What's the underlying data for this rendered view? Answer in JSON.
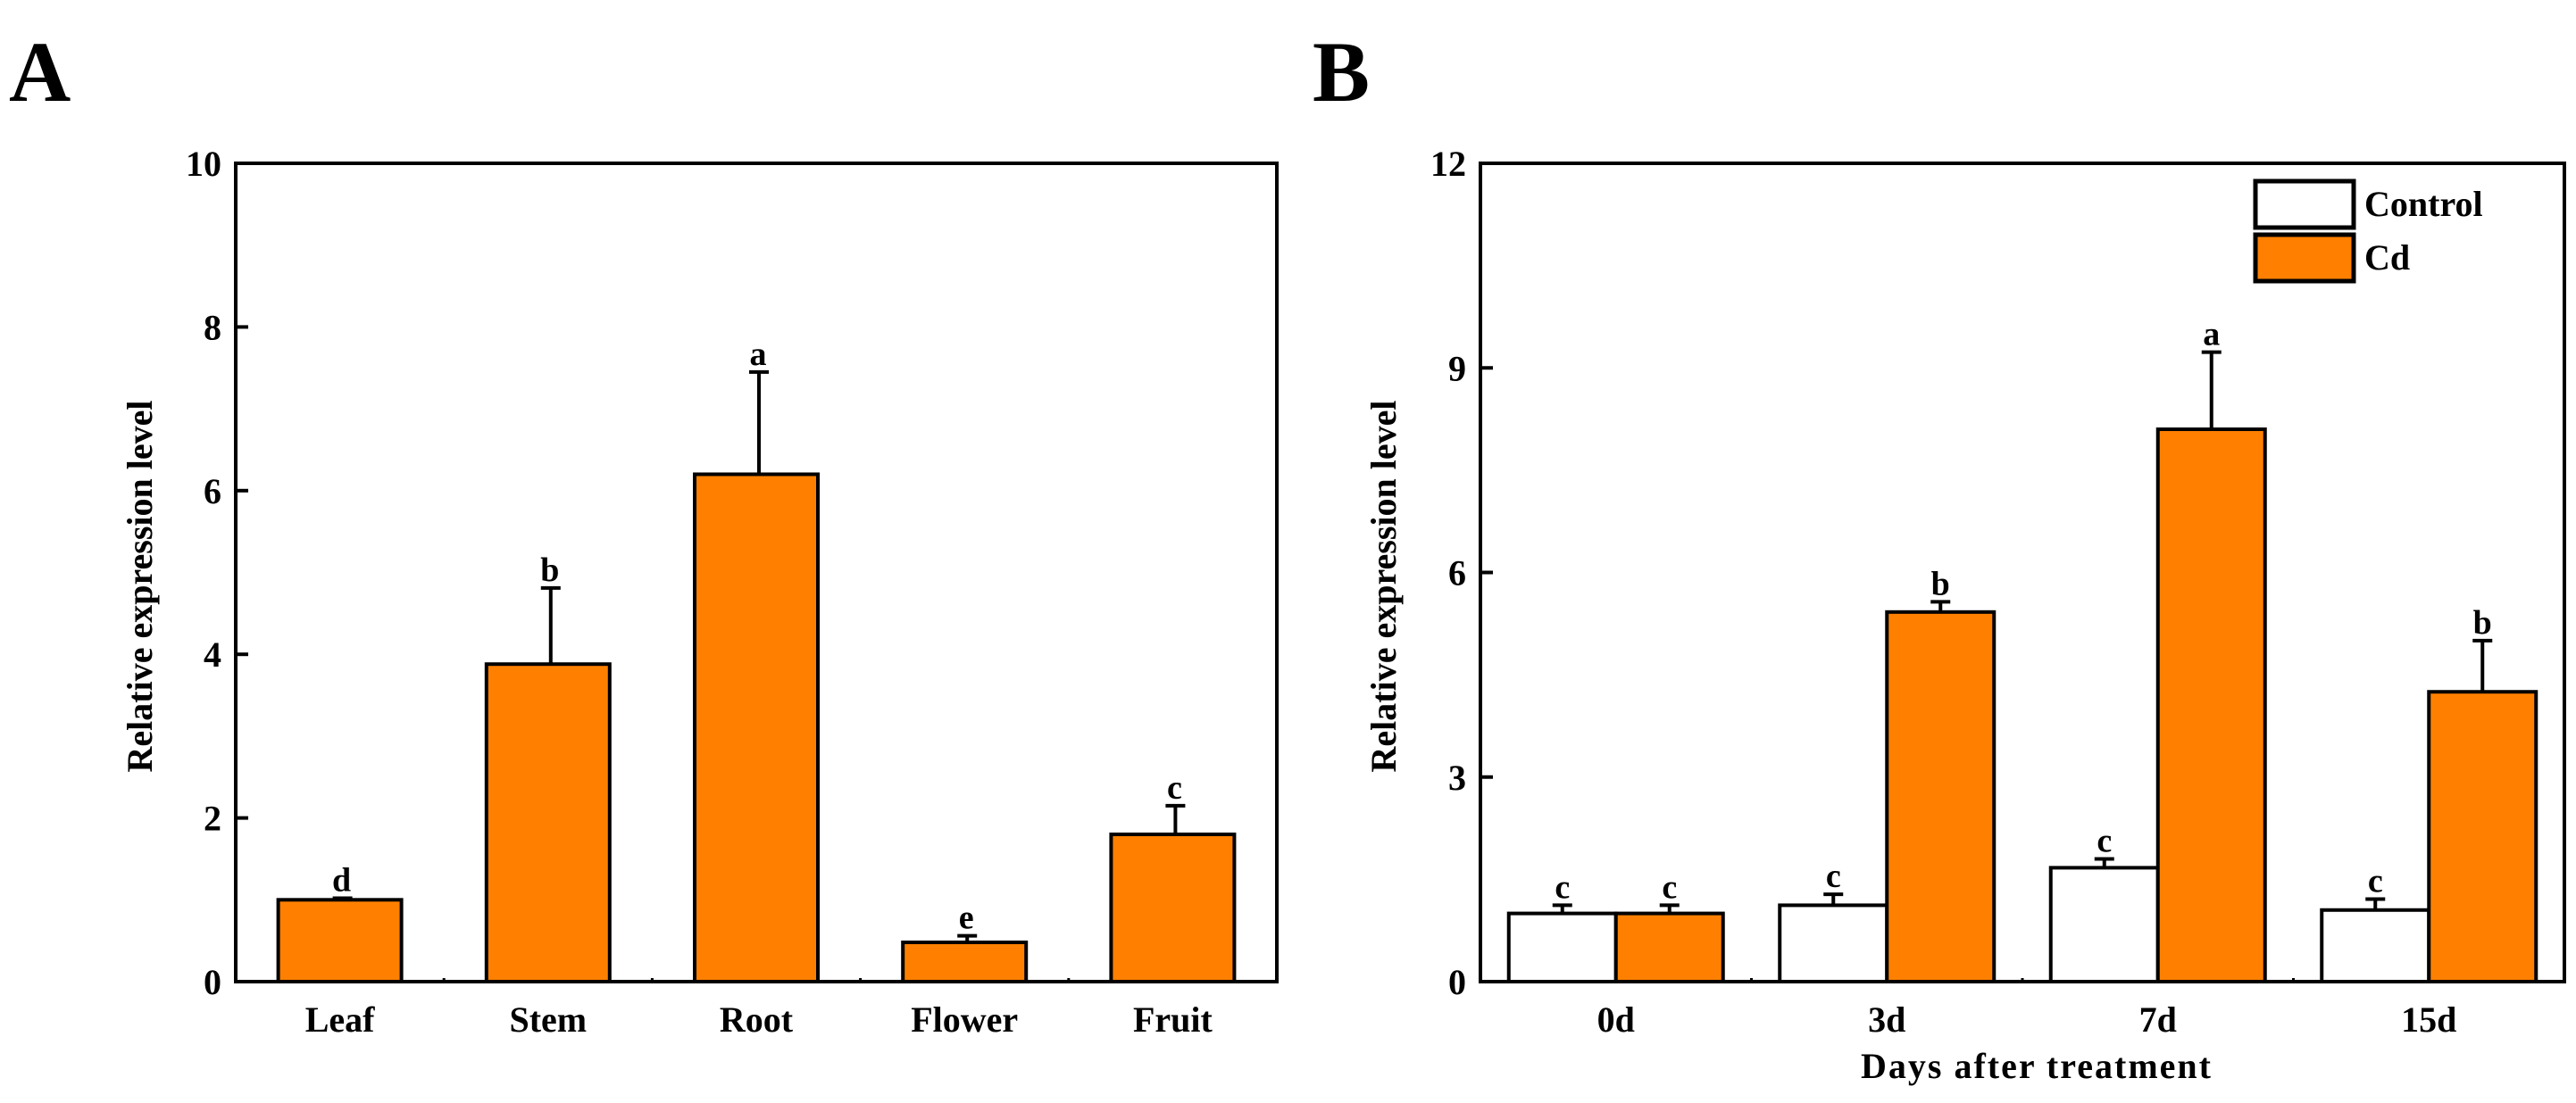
{
  "colors": {
    "cd": "#FF8000",
    "control": "#FFFFFF",
    "stroke": "#000000"
  },
  "chart_data": [
    {
      "panel": "A",
      "type": "bar",
      "categories": [
        "Leaf",
        "Stem",
        "Root",
        "Flower",
        "Fruit"
      ],
      "values": [
        1.0,
        3.88,
        6.2,
        0.48,
        1.8
      ],
      "errors": [
        0.02,
        0.93,
        1.25,
        0.08,
        0.35
      ],
      "significance": [
        "d",
        "b",
        "a",
        "e",
        "c"
      ],
      "ylabel": "Relative expression level",
      "xlabel": "",
      "ylim": [
        0,
        10
      ],
      "yticks": [
        0,
        2,
        4,
        6,
        8,
        10
      ],
      "tick_labels": [
        "0",
        "2",
        "4",
        "6",
        "8",
        "10"
      ]
    },
    {
      "panel": "B",
      "type": "bar",
      "categories": [
        "0d",
        "3d",
        "7d",
        "15d"
      ],
      "series": [
        {
          "name": "Control",
          "values": [
            1.0,
            1.12,
            1.67,
            1.05
          ],
          "errors": [
            0.12,
            0.16,
            0.13,
            0.16
          ],
          "significance": [
            "c",
            "c",
            "c",
            "c"
          ]
        },
        {
          "name": "Cd",
          "values": [
            1.0,
            5.42,
            8.1,
            4.25
          ],
          "errors": [
            0.12,
            0.15,
            1.13,
            0.75
          ],
          "significance": [
            "c",
            "b",
            "a",
            "b"
          ]
        }
      ],
      "ylabel": "Relative expression level",
      "xlabel": "Days after treatment",
      "ylim": [
        0,
        12
      ],
      "yticks": [
        0,
        3,
        6,
        9,
        12
      ],
      "tick_labels": [
        "0",
        "3",
        "6",
        "9",
        "12"
      ],
      "legend": {
        "position": "top-right",
        "entries": [
          "Control",
          "Cd"
        ]
      }
    }
  ]
}
